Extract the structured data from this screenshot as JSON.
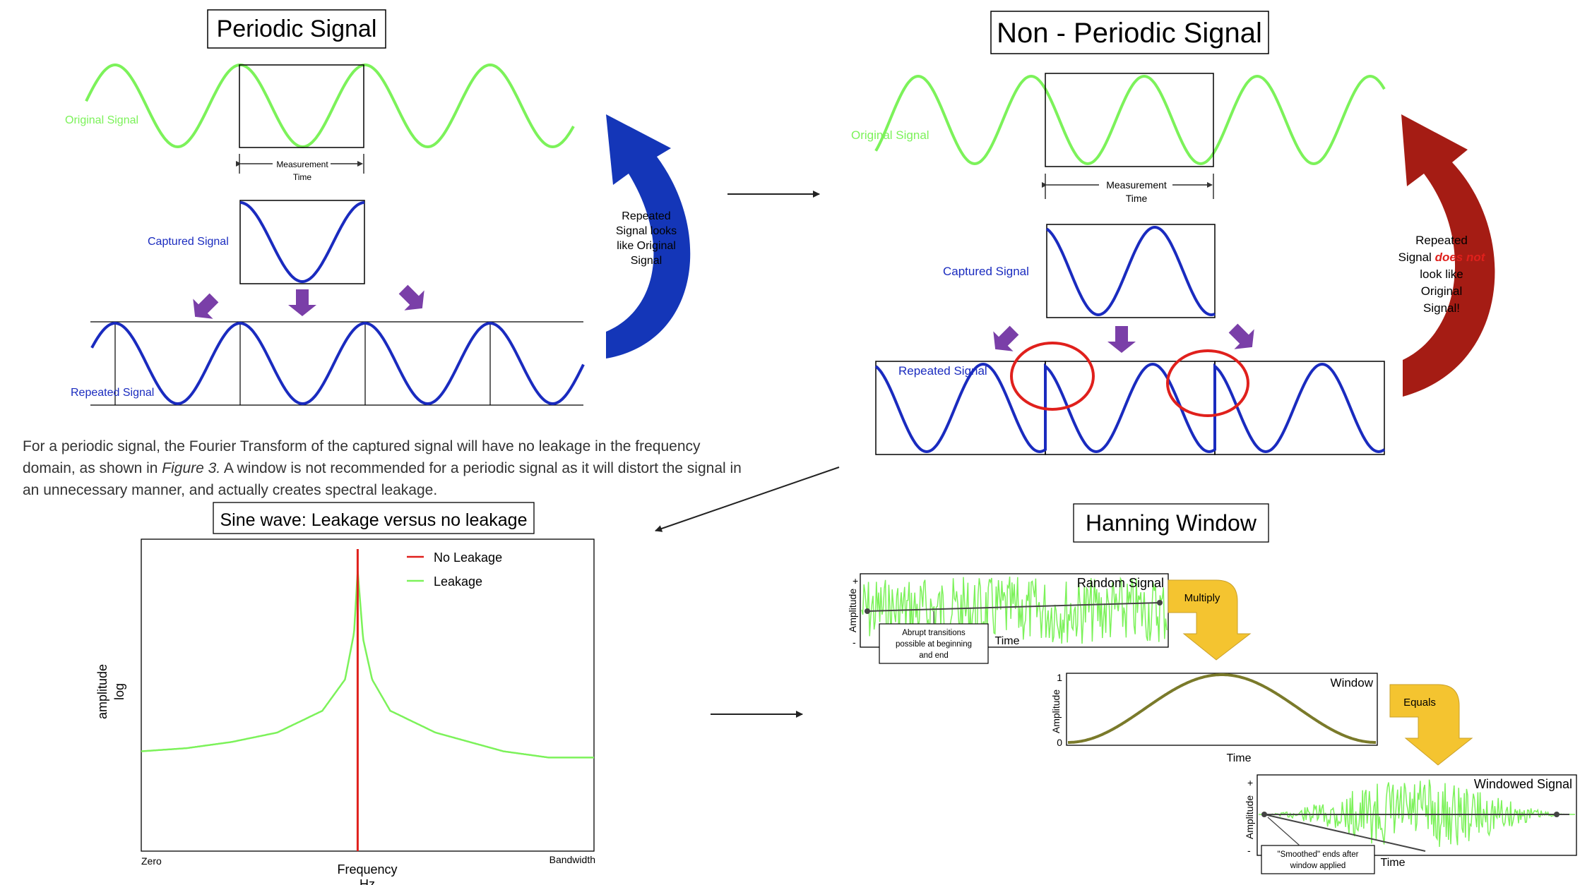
{
  "periodic": {
    "title": "Periodic Signal",
    "original_label": "Original Signal",
    "measurement_label_1": "Measurement",
    "measurement_label_2": "Time",
    "captured_label": "Captured Signal",
    "repeated_label": "Repeated Signal",
    "repeated_note": [
      "Repeated",
      "Signal looks",
      "like Original",
      "Signal"
    ]
  },
  "nonperiodic": {
    "title": "Non - Periodic Signal",
    "original_label": "Original Signal",
    "measurement_label_1": "Measurement",
    "measurement_label_2": "Time",
    "captured_label": "Captured Signal",
    "repeated_label": "Repeated Signal",
    "note_line1": "Repeated",
    "note_line2_prefix": "Signal ",
    "note_line2_emph": "does not",
    "note_line3": "look like",
    "note_line4": "Original",
    "note_line5": "Signal!"
  },
  "caption": {
    "part1": "For a periodic signal, the Fourier Transform of the captured signal will have no leakage in the frequency domain, as shown in ",
    "figure_ref": "Figure 3.",
    "part2": " A window is not recommended for a periodic signal as it will distort the signal in an unnecessary manner, and actually creates spectral leakage."
  },
  "hanning": {
    "title": "Hanning Window",
    "random_label": "Random Signal",
    "amplitude_label": "Amplitude",
    "plus": "+",
    "minus": "-",
    "abrupt_line1": "Abrupt transitions",
    "abrupt_line2": "possible at beginning",
    "abrupt_line3": "and end",
    "time_label": "Time",
    "multiply_label": "Multiply",
    "window_label": "Window",
    "tick_one": "1",
    "tick_zero": "0",
    "equals_label": "Equals",
    "windowed_label": "Windowed Signal",
    "smoothed_line1": "\"Smoothed\" ends after",
    "smoothed_line2": "window applied"
  },
  "colors": {
    "green": "#7cf25a",
    "blue": "#1a2bbf",
    "purple": "#7a3fa8",
    "red": "#e0201c",
    "arrow_blue": "#1436b8",
    "arrow_red": "#a51c14",
    "gold": "#f4c430",
    "olive": "#7a7a2a"
  },
  "chart_data": {
    "type": "line",
    "title": "Sine wave: Leakage versus no leakage",
    "xlabel": "Frequency",
    "xlabel_unit": "Hz",
    "ylabel": "amplitude",
    "ylabel_scale": "log",
    "x_ticks": [
      "Zero",
      "Bandwidth"
    ],
    "legend_position": "top-right",
    "series": [
      {
        "name": "No Leakage",
        "color": "#e0201c",
        "x": [
          0.477,
          0.478,
          0.479
        ],
        "y": [
          0,
          1,
          0
        ]
      },
      {
        "name": "Leakage",
        "color": "#7cf25a",
        "x": [
          0.0,
          0.1,
          0.2,
          0.3,
          0.4,
          0.45,
          0.47,
          0.478,
          0.49,
          0.51,
          0.55,
          0.65,
          0.8,
          0.9,
          1.0
        ],
        "y": [
          0.32,
          0.33,
          0.35,
          0.38,
          0.45,
          0.55,
          0.7,
          0.9,
          0.68,
          0.55,
          0.45,
          0.38,
          0.32,
          0.3,
          0.28
        ]
      }
    ],
    "xlim": [
      0,
      1
    ],
    "ylim": [
      0,
      1
    ]
  }
}
